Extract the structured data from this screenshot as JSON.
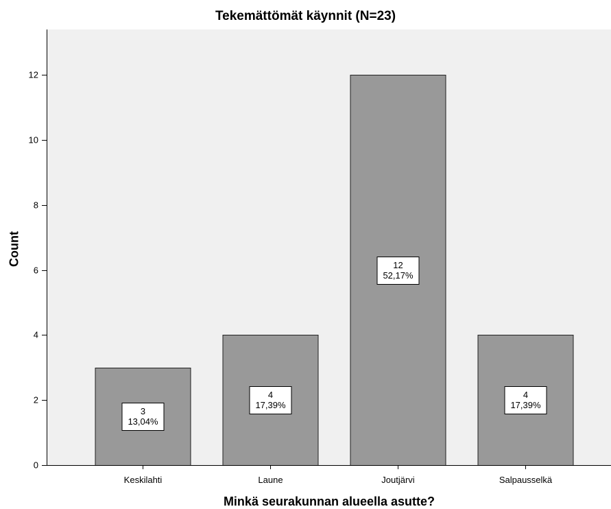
{
  "chart_data": {
    "type": "bar",
    "title": "Tekemättömät käynnit (N=23)",
    "xlabel": "Minkä seurakunnan alueella asutte?",
    "ylabel": "Count",
    "categories": [
      "Keskilahti",
      "Laune",
      "Joutjärvi",
      "Salpausselkä"
    ],
    "values": [
      3,
      4,
      12,
      4
    ],
    "percent_labels": [
      "13,04%",
      "17,39%",
      "52,17%",
      "17,39%"
    ],
    "yticks": [
      0,
      2,
      4,
      6,
      8,
      10,
      12
    ],
    "ylim": [
      0,
      13.4
    ],
    "grid": false,
    "colors": {
      "bar_fill": "#999999",
      "bar_stroke": "#1f1f1f",
      "plot_background": "#f0f0f0",
      "label_box_fill": "#ffffff",
      "label_box_stroke": "#000000"
    }
  }
}
